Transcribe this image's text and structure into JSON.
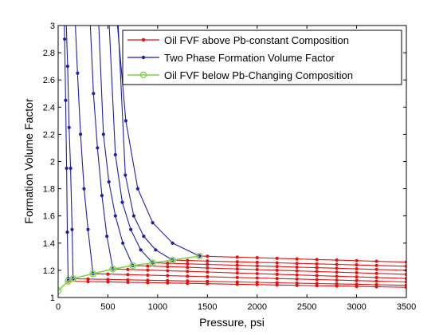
{
  "chart_data": {
    "type": "line",
    "xlabel": "Pressure, psi",
    "ylabel": "Formation Volume Factor",
    "xlim": [
      0,
      3500
    ],
    "ylim": [
      1,
      3
    ],
    "xticks": [
      0,
      500,
      1000,
      1500,
      2000,
      2500,
      3000,
      3500
    ],
    "yticks": [
      1,
      1.2,
      1.4,
      1.6,
      1.8,
      2,
      2.2,
      2.4,
      2.6,
      2.8,
      3
    ],
    "xtick_labels": [
      "0",
      "500",
      "1000",
      "1500",
      "2000",
      "2500",
      "3000",
      "3500"
    ],
    "ytick_labels": [
      "1",
      "1.2",
      "1.4",
      "1.6",
      "1.8",
      "2",
      "2.2",
      "2.4",
      "2.6",
      "2.8",
      "3"
    ],
    "grid": false,
    "legend_position": "top-right",
    "legend": [
      {
        "label": "Oil FVF above Pb-constant Composition",
        "color": "#e8100e",
        "marker": "dot"
      },
      {
        "label": "Two Phase Formation Volume Factor",
        "color": "#1f1fa8",
        "marker": "dot"
      },
      {
        "label": "Oil FVF below Pb-Changing Composition",
        "color": "#7fd44a",
        "marker": "circle"
      }
    ],
    "above_pb_x": [
      100,
      300,
      500,
      700,
      900,
      1100,
      1300,
      1500,
      1800,
      2000,
      2200,
      2400,
      2600,
      2800,
      3000,
      3200,
      3500
    ],
    "above_pb_series": [
      {
        "pb": 100,
        "bob": 1.12,
        "bend": 1.075
      },
      {
        "pb": 150,
        "bob": 1.138,
        "bend": 1.09
      },
      {
        "pb": 350,
        "bob": 1.175,
        "bend": 1.115
      },
      {
        "pb": 550,
        "bob": 1.21,
        "bend": 1.14
      },
      {
        "pb": 750,
        "bob": 1.235,
        "bend": 1.17
      },
      {
        "pb": 950,
        "bob": 1.255,
        "bend": 1.2
      },
      {
        "pb": 1150,
        "bob": 1.275,
        "bend": 1.23
      },
      {
        "pb": 1420,
        "bob": 1.305,
        "bend": 1.26
      }
    ],
    "two_phase_series": [
      {
        "x": [
          100,
          92,
          85,
          75,
          65,
          55
        ],
        "y": [
          1.14,
          1.48,
          1.95,
          2.45,
          2.9,
          3.2
        ]
      },
      {
        "x": [
          150,
          140,
          125,
          110,
          95,
          80
        ],
        "y": [
          1.14,
          1.5,
          1.95,
          2.25,
          2.7,
          3.05
        ]
      },
      {
        "x": [
          350,
          300,
          260,
          225,
          195,
          170
        ],
        "y": [
          1.175,
          1.5,
          1.8,
          2.2,
          2.65,
          3.05
        ]
      },
      {
        "x": [
          550,
          490,
          440,
          395,
          355,
          320
        ],
        "y": [
          1.21,
          1.45,
          1.75,
          2.1,
          2.5,
          3.05
        ]
      },
      {
        "x": [
          750,
          650,
          575,
          510,
          455,
          405
        ],
        "y": [
          1.235,
          1.4,
          1.6,
          1.85,
          2.2,
          3.05
        ]
      },
      {
        "x": [
          950,
          830,
          730,
          645,
          575,
          510
        ],
        "y": [
          1.255,
          1.35,
          1.5,
          1.7,
          2.05,
          3.05
        ]
      },
      {
        "x": [
          1150,
          980,
          860,
          760,
          675,
          600
        ],
        "y": [
          1.275,
          1.35,
          1.45,
          1.6,
          1.9,
          3.05
        ]
      },
      {
        "x": [
          1420,
          1150,
          950,
          800,
          680,
          590
        ],
        "y": [
          1.305,
          1.4,
          1.55,
          1.8,
          2.3,
          3.05
        ]
      }
    ],
    "below_pb_series": {
      "x": [
        0,
        100,
        150,
        350,
        550,
        750,
        950,
        1150,
        1420
      ],
      "y": [
        1.05,
        1.12,
        1.14,
        1.175,
        1.21,
        1.235,
        1.255,
        1.275,
        1.305
      ]
    }
  }
}
